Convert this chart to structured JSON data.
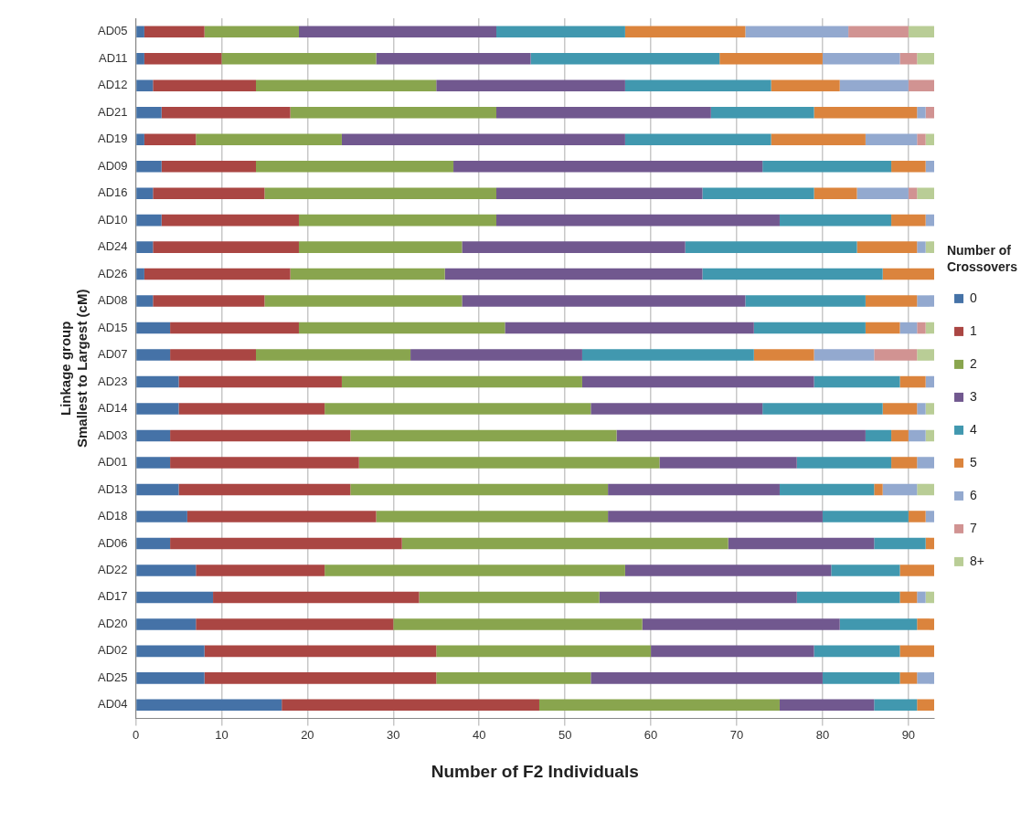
{
  "chart_data": {
    "type": "bar",
    "orientation": "horizontal",
    "stacked": true,
    "xlabel": "Number of F2 Individuals",
    "ylabel": "Linkage group\nSmallest to Largest (cM)",
    "legend_title": "Number of Crossovers",
    "categories": [
      "AD05",
      "AD11",
      "AD12",
      "AD21",
      "AD19",
      "AD09",
      "AD16",
      "AD10",
      "AD24",
      "AD26",
      "AD08",
      "AD15",
      "AD07",
      "AD23",
      "AD14",
      "AD03",
      "AD01",
      "AD13",
      "AD18",
      "AD06",
      "AD22",
      "AD17",
      "AD20",
      "AD02",
      "AD25",
      "AD04"
    ],
    "xlim": [
      0,
      93
    ],
    "xticks": [
      0,
      10,
      20,
      30,
      40,
      50,
      60,
      70,
      80,
      90
    ],
    "grid": "x",
    "legend": "right",
    "series": [
      {
        "name": "0",
        "color": "#4572a7",
        "values": [
          1,
          1,
          2,
          3,
          1,
          3,
          2,
          3,
          2,
          1,
          2,
          4,
          4,
          5,
          5,
          4,
          4,
          5,
          6,
          4,
          7,
          9,
          7,
          8,
          8,
          17
        ]
      },
      {
        "name": "1",
        "color": "#aa4643",
        "values": [
          7,
          9,
          12,
          15,
          6,
          11,
          13,
          16,
          17,
          17,
          13,
          15,
          10,
          19,
          17,
          21,
          22,
          20,
          22,
          27,
          15,
          24,
          23,
          27,
          27,
          30
        ]
      },
      {
        "name": "2",
        "color": "#89a54e",
        "values": [
          11,
          18,
          21,
          24,
          17,
          23,
          27,
          23,
          19,
          18,
          23,
          24,
          18,
          28,
          31,
          31,
          35,
          30,
          27,
          38,
          35,
          21,
          29,
          25,
          18,
          28
        ]
      },
      {
        "name": "3",
        "color": "#71588f",
        "values": [
          23,
          18,
          22,
          25,
          33,
          36,
          24,
          33,
          26,
          30,
          33,
          29,
          20,
          27,
          20,
          29,
          16,
          20,
          25,
          17,
          24,
          23,
          23,
          19,
          27,
          11
        ]
      },
      {
        "name": "4",
        "color": "#4198af",
        "values": [
          15,
          22,
          17,
          12,
          17,
          15,
          13,
          13,
          20,
          21,
          14,
          13,
          20,
          10,
          14,
          3,
          11,
          11,
          10,
          6,
          8,
          12,
          9,
          10,
          9,
          5
        ]
      },
      {
        "name": "5",
        "color": "#db843d",
        "values": [
          14,
          12,
          8,
          12,
          11,
          4,
          5,
          4,
          7,
          6,
          6,
          4,
          7,
          3,
          4,
          2,
          3,
          1,
          2,
          1,
          4,
          2,
          2,
          4,
          2,
          2
        ]
      },
      {
        "name": "6",
        "color": "#93a9cf",
        "values": [
          12,
          9,
          8,
          1,
          6,
          1,
          6,
          1,
          1,
          0,
          2,
          2,
          7,
          1,
          1,
          2,
          2,
          4,
          1,
          0,
          0,
          1,
          0,
          0,
          2,
          0
        ]
      },
      {
        "name": "7",
        "color": "#d19392",
        "values": [
          7,
          2,
          3,
          1,
          1,
          0,
          1,
          0,
          0,
          0,
          0,
          1,
          5,
          0,
          0,
          0,
          0,
          0,
          0,
          0,
          0,
          0,
          0,
          0,
          0,
          0
        ]
      },
      {
        "name": "8+",
        "color": "#b9cd96",
        "values": [
          3,
          2,
          0,
          0,
          1,
          0,
          2,
          0,
          1,
          0,
          0,
          1,
          2,
          0,
          1,
          1,
          0,
          2,
          0,
          0,
          0,
          1,
          0,
          0,
          0,
          0
        ]
      }
    ]
  }
}
